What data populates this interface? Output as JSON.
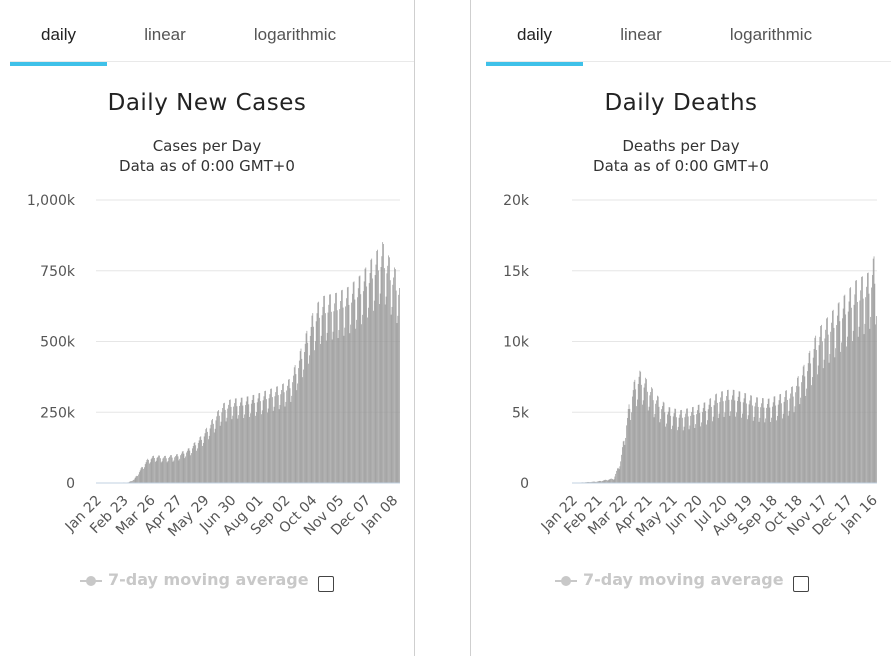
{
  "panels": [
    {
      "tabs": [
        {
          "label": "daily",
          "active": true
        },
        {
          "label": "linear",
          "active": false
        },
        {
          "label": "logarithmic",
          "active": false
        }
      ],
      "title": "Daily New Cases",
      "subtitle": "Cases per Day",
      "data_note": "Data as of 0:00 GMT+0",
      "legend_label": "7-day moving average"
    },
    {
      "tabs": [
        {
          "label": "daily",
          "active": true
        },
        {
          "label": "linear",
          "active": false
        },
        {
          "label": "logarithmic",
          "active": false
        }
      ],
      "title": "Daily Deaths",
      "subtitle": "Deaths per Day",
      "data_note": "Data as of 0:00 GMT+0",
      "legend_label": "7-day moving average"
    }
  ],
  "colors": {
    "bar": "#999999",
    "grid": "#e6e6e6",
    "tab_accent": "#3fc1e9",
    "legend_disabled": "#c8c8c8"
  },
  "chart_data": [
    {
      "type": "bar",
      "title": "Daily New Cases",
      "subtitle": "Cases per Day",
      "ylim": [
        0,
        1000000
      ],
      "yticks": [
        0,
        250000,
        500000,
        750000,
        1000000
      ],
      "ytick_labels": [
        "0",
        "250k",
        "500k",
        "750k",
        "1,000k"
      ],
      "xtick_labels": [
        "Jan 22",
        "Feb 23",
        "Mar 26",
        "Apr 27",
        "May 29",
        "Jun 30",
        "Aug 01",
        "Sep 02",
        "Oct 04",
        "Nov 05",
        "Dec 07",
        "Jan 08"
      ],
      "interval_days": 32,
      "total_days": 360,
      "series": [
        {
          "anchors": [
            [
              0,
              0
            ],
            [
              38,
              2000
            ],
            [
              45,
              12000
            ],
            [
              55,
              55000
            ],
            [
              62,
              80000
            ],
            [
              70,
              88000
            ],
            [
              80,
              85000
            ],
            [
              95,
              90000
            ],
            [
              110,
              110000
            ],
            [
              125,
              150000
            ],
            [
              140,
              210000
            ],
            [
              150,
              250000
            ],
            [
              160,
              265000
            ],
            [
              175,
              270000
            ],
            [
              190,
              280000
            ],
            [
              205,
              295000
            ],
            [
              220,
              310000
            ],
            [
              230,
              330000
            ],
            [
              240,
              400000
            ],
            [
              250,
              480000
            ],
            [
              260,
              560000
            ],
            [
              270,
              590000
            ],
            [
              285,
              600000
            ],
            [
              300,
              620000
            ],
            [
              315,
              660000
            ],
            [
              330,
              720000
            ],
            [
              340,
              760000
            ],
            [
              350,
              700000
            ],
            [
              360,
              650000
            ]
          ],
          "weekly_amplitude": 0.15
        }
      ]
    },
    {
      "type": "bar",
      "title": "Daily Deaths",
      "subtitle": "Deaths per Day",
      "ylim": [
        0,
        20000
      ],
      "yticks": [
        0,
        5000,
        10000,
        15000,
        20000
      ],
      "ytick_labels": [
        "0",
        "5k",
        "10k",
        "15k",
        "20k"
      ],
      "xtick_labels": [
        "Jan 22",
        "Feb 21",
        "Mar 22",
        "Apr 21",
        "May 21",
        "Jun 20",
        "Jul 20",
        "Aug 19",
        "Sep 18",
        "Oct 18",
        "Nov 17",
        "Dec 17",
        "Jan 16"
      ],
      "interval_days": 30,
      "total_days": 365,
      "series": [
        {
          "anchors": [
            [
              0,
              0
            ],
            [
              30,
              100
            ],
            [
              50,
              300
            ],
            [
              58,
              1500
            ],
            [
              65,
              4000
            ],
            [
              72,
              6000
            ],
            [
              80,
              7000
            ],
            [
              88,
              6500
            ],
            [
              100,
              5500
            ],
            [
              115,
              4700
            ],
            [
              130,
              4500
            ],
            [
              145,
              4700
            ],
            [
              160,
              5000
            ],
            [
              175,
              5600
            ],
            [
              190,
              5800
            ],
            [
              205,
              5600
            ],
            [
              220,
              5300
            ],
            [
              235,
              5200
            ],
            [
              250,
              5500
            ],
            [
              265,
              6000
            ],
            [
              280,
              7500
            ],
            [
              295,
              9500
            ],
            [
              310,
              10500
            ],
            [
              325,
              11500
            ],
            [
              340,
              12500
            ],
            [
              355,
              13000
            ],
            [
              362,
              14000
            ],
            [
              365,
              13500
            ]
          ],
          "weekly_amplitude": 0.18
        }
      ]
    }
  ]
}
